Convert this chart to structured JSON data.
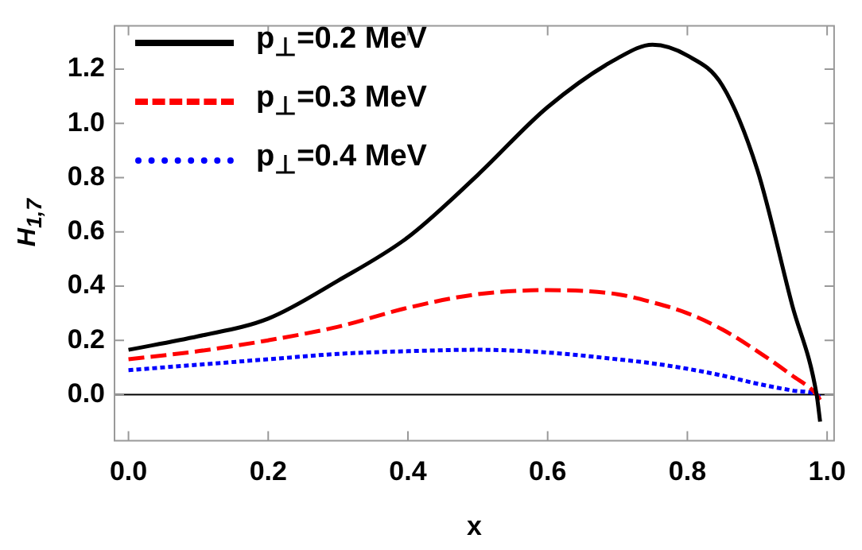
{
  "chart_data": {
    "type": "line",
    "xlabel": "x",
    "ylabel": "H$_{1,7}$",
    "xlim": [
      -0.02,
      1.01
    ],
    "ylim": [
      -0.17,
      1.36
    ],
    "xticks": [
      {
        "value": 0,
        "label": "0.0"
      },
      {
        "value": 0.2,
        "label": "0.2"
      },
      {
        "value": 0.4,
        "label": "0.4"
      },
      {
        "value": 0.6,
        "label": "0.6"
      },
      {
        "value": 0.8,
        "label": "0.8"
      },
      {
        "value": 1,
        "label": "1.0"
      }
    ],
    "yticks": [
      {
        "value": 0,
        "label": "0.0"
      },
      {
        "value": 0.2,
        "label": "0.2"
      },
      {
        "value": 0.4,
        "label": "0.4"
      },
      {
        "value": 0.6,
        "label": "0.6"
      },
      {
        "value": 0.8,
        "label": "0.8"
      },
      {
        "value": 1,
        "label": "1.0"
      },
      {
        "value": 1.2,
        "label": "1.2"
      }
    ],
    "x": [
      0,
      0.1,
      0.2,
      0.3,
      0.4,
      0.5,
      0.6,
      0.7,
      0.75,
      0.8,
      0.85,
      0.9,
      0.95,
      0.985,
      0.99
    ],
    "series": [
      {
        "name": "p$_{⊥}$=0.2 MeV",
        "color": "#000000",
        "line_style": "solid",
        "values": [
          0.165,
          0.215,
          0.28,
          0.42,
          0.58,
          0.81,
          1.06,
          1.24,
          1.29,
          1.25,
          1.14,
          0.83,
          0.33,
          0.0,
          -0.1
        ]
      },
      {
        "name": "p$_{⊥}$=0.3 MeV",
        "color": "#ff0000",
        "line_style": "dashed",
        "values": [
          0.13,
          0.16,
          0.2,
          0.25,
          0.32,
          0.37,
          0.385,
          0.37,
          0.34,
          0.3,
          0.24,
          0.16,
          0.07,
          0.0,
          -0.02
        ]
      },
      {
        "name": "p$_{⊥}$=0.4 MeV",
        "color": "#0000ff",
        "line_style": "dotted",
        "values": [
          0.09,
          0.11,
          0.13,
          0.15,
          0.16,
          0.165,
          0.155,
          0.13,
          0.115,
          0.095,
          0.07,
          0.04,
          0.015,
          0.0,
          -0.01
        ]
      }
    ],
    "ref_lines": [
      {
        "axis": "y",
        "value": 0,
        "color": "#000000"
      }
    ],
    "legend": "top left",
    "grid": false,
    "marker": "none"
  }
}
